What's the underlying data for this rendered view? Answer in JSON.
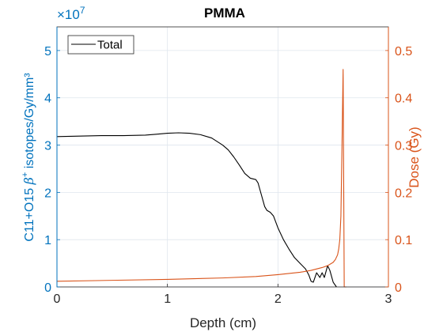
{
  "chart_data": {
    "type": "line",
    "title": "PMMA",
    "xlabel": "Depth (cm)",
    "ylabel_left_prefix": "C11+O15 ",
    "ylabel_left_beta": "β",
    "ylabel_left_sup": "+",
    "ylabel_left_suffix": " isotopes/Gy/mm³",
    "ylabel_right": "Dose (Gy)",
    "left_axis_exponent_base": "×10",
    "left_axis_exponent": "7",
    "xlim": [
      0,
      3
    ],
    "ylim_left": [
      0,
      5.5
    ],
    "ylim_right": [
      0,
      0.55
    ],
    "xticks": [
      0,
      1,
      2,
      3
    ],
    "xtick_labels": [
      "0",
      "1",
      "2",
      "3"
    ],
    "yticks_left": [
      0,
      1,
      2,
      3,
      4,
      5
    ],
    "ytick_labels_left": [
      "0",
      "1",
      "2",
      "3",
      "4",
      "5"
    ],
    "yticks_right": [
      0,
      0.1,
      0.2,
      0.3,
      0.4,
      0.5
    ],
    "ytick_labels_right": [
      "0",
      "0.1",
      "0.2",
      "0.3",
      "0.4",
      "0.5"
    ],
    "grid": true,
    "legend": {
      "position": "top-left",
      "entries": [
        "Total"
      ]
    },
    "colors": {
      "left_axis": "#0072BD",
      "right_axis": "#D95319",
      "total": "#000000",
      "dose": "#D95319",
      "grid": "#dfe6ee"
    },
    "series": [
      {
        "name": "Total",
        "axis": "left",
        "color": "#000000",
        "x": [
          0,
          0.2,
          0.4,
          0.6,
          0.8,
          0.9,
          1.0,
          1.1,
          1.2,
          1.3,
          1.4,
          1.5,
          1.55,
          1.6,
          1.65,
          1.7,
          1.75,
          1.8,
          1.82,
          1.85,
          1.88,
          1.9,
          1.93,
          1.96,
          2.0,
          2.05,
          2.1,
          2.15,
          2.2,
          2.25,
          2.28,
          2.3,
          2.32,
          2.35,
          2.38,
          2.4,
          2.42,
          2.45,
          2.47,
          2.5,
          2.53
        ],
        "y": [
          3.18,
          3.19,
          3.2,
          3.2,
          3.21,
          3.23,
          3.25,
          3.26,
          3.25,
          3.22,
          3.15,
          3.0,
          2.9,
          2.75,
          2.58,
          2.4,
          2.3,
          2.27,
          2.2,
          1.95,
          1.7,
          1.62,
          1.58,
          1.5,
          1.25,
          1.0,
          0.8,
          0.62,
          0.5,
          0.38,
          0.25,
          0.12,
          0.1,
          0.3,
          0.2,
          0.3,
          0.2,
          0.45,
          0.35,
          0.1,
          0.0
        ]
      },
      {
        "name": "",
        "axis": "right",
        "color": "#D95319",
        "x": [
          0,
          0.5,
          1.0,
          1.5,
          1.8,
          2.0,
          2.2,
          2.3,
          2.4,
          2.45,
          2.5,
          2.52,
          2.54,
          2.55,
          2.56,
          2.57,
          2.58,
          2.59,
          2.6,
          2.62
        ],
        "y": [
          0.012,
          0.014,
          0.016,
          0.019,
          0.022,
          0.026,
          0.031,
          0.035,
          0.041,
          0.045,
          0.052,
          0.058,
          0.068,
          0.08,
          0.1,
          0.15,
          0.3,
          0.46,
          0.0,
          0.0
        ]
      }
    ]
  }
}
